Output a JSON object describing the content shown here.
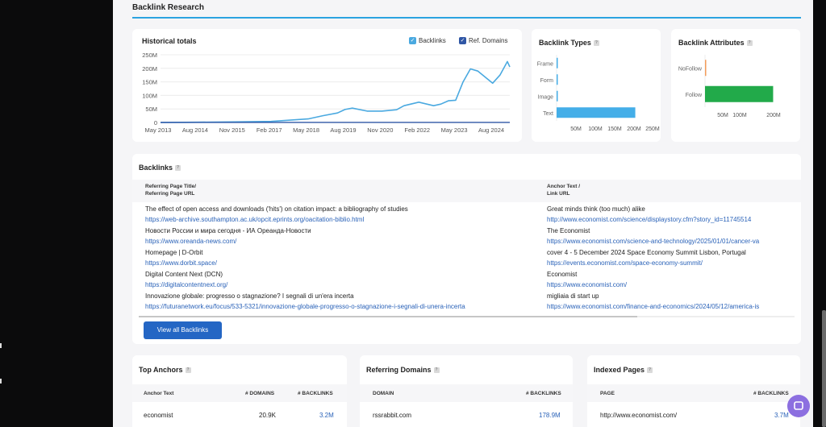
{
  "section": {
    "title": "Backlink Research"
  },
  "historical": {
    "title": "Historical totals",
    "legend": [
      {
        "label": "Backlinks",
        "color": "#4aa9e0"
      },
      {
        "label": "Ref. Domains",
        "color": "#2f56a5"
      }
    ]
  },
  "chart_data": [
    {
      "type": "line",
      "title": "Historical totals",
      "x_tick_labels": [
        "May 2013",
        "Aug 2014",
        "Nov 2015",
        "Feb 2017",
        "May 2018",
        "Aug 2019",
        "Nov 2020",
        "Feb 2022",
        "May 2023",
        "Aug 2024"
      ],
      "y_tick_labels": [
        "250M",
        "200M",
        "150M",
        "100M",
        "50M",
        "0"
      ],
      "ylim": [
        0,
        250000000
      ],
      "series": [
        {
          "name": "Backlinks",
          "color": "#4aa9e0",
          "x": [
            "2013-05",
            "2014-08",
            "2015-11",
            "2017-02",
            "2018-05",
            "2018-11",
            "2019-05",
            "2019-08",
            "2019-11",
            "2020-05",
            "2020-11",
            "2021-05",
            "2021-08",
            "2022-02",
            "2022-08",
            "2022-11",
            "2023-02",
            "2023-05",
            "2023-08",
            "2023-11",
            "2024-02",
            "2024-08",
            "2024-11",
            "2025-02",
            "2025-03"
          ],
          "values": [
            0,
            1000000,
            2000000,
            4000000,
            13000000,
            25000000,
            35000000,
            48000000,
            53000000,
            42000000,
            42000000,
            47000000,
            62000000,
            75000000,
            62000000,
            68000000,
            80000000,
            82000000,
            150000000,
            198000000,
            190000000,
            145000000,
            175000000,
            225000000,
            205000000
          ]
        },
        {
          "name": "Ref. Domains",
          "color": "#2f56a5",
          "x": [
            "2013-05",
            "2025-03"
          ],
          "values": [
            0,
            300000
          ]
        }
      ]
    },
    {
      "type": "bar",
      "title": "Backlink Types",
      "categories": [
        "Frame",
        "Form",
        "Image",
        "Text"
      ],
      "values": [
        0.8,
        0.8,
        0.8,
        205
      ],
      "x_tick_labels": [
        "50M",
        "100M",
        "150M",
        "200M",
        "250M"
      ],
      "color": "#44aee8"
    },
    {
      "type": "bar",
      "title": "Backlink Attributes",
      "categories": [
        "NoFollow",
        "Follow"
      ],
      "values": [
        2,
        205
      ],
      "colors": [
        "#f39c5a",
        "#22aa4a"
      ],
      "x_tick_labels": [
        "50M",
        "100M",
        "200M"
      ]
    }
  ],
  "backlink_types": {
    "title": "Backlink Types"
  },
  "backlink_attributes": {
    "title": "Backlink Attributes"
  },
  "backlinks": {
    "title": "Backlinks",
    "col1_header_line1": "Referring Page Title/",
    "col1_header_line2": "Referring Page URL",
    "col2_header_line1": "Anchor Text /",
    "col2_header_line2": "Link URL",
    "rows": [
      {
        "title": "The effect of open access and downloads ('hits') on citation impact: a bibliography of studies",
        "url": "https://web-archive.southampton.ac.uk/opcit.eprints.org/oacitation-biblio.html",
        "anchor": "Great minds think (too much) alike",
        "link": "http://www.economist.com/science/displaystory.cfm?story_id=11745514"
      },
      {
        "title": "Новости России и мира сегодня - ИА Ореанда-Новости",
        "url": "https://www.oreanda-news.com/",
        "anchor": "The Economist",
        "link": "https://www.economist.com/science-and-technology/2025/01/01/cancer-va"
      },
      {
        "title": "Homepage | D-Orbit",
        "url": "https://www.dorbit.space/",
        "anchor": "cover 4 - 5 December 2024 Space Economy Summit Lisbon, Portugal",
        "link": "https://events.economist.com/space-economy-summit/"
      },
      {
        "title": "Digital Content Next (DCN)",
        "url": "https://digitalcontentnext.org/",
        "anchor": "Economist",
        "link": "https://www.economist.com/"
      },
      {
        "title": "Innovazione globale: progresso o stagnazione? I segnali di un'era incerta",
        "url": "https://futuranetwork.eu/focus/533-5321/innovazione-globale-progresso-o-stagnazione-i-segnali-di-unera-incerta",
        "anchor": "migliaia di start up",
        "link": "https://www.economist.com/finance-and-economics/2024/05/12/america-is"
      }
    ],
    "view_all_label": "View all Backlinks"
  },
  "top_anchors": {
    "title": "Top Anchors",
    "headers": [
      "Anchor Text",
      "# DOMAINS",
      "# BACKLINKS"
    ],
    "rows": [
      {
        "text": "economist",
        "domains": "20.9K",
        "backlinks": "3.2M"
      }
    ]
  },
  "referring_domains": {
    "title": "Referring Domains",
    "headers": [
      "DOMAIN",
      "# BACKLINKS"
    ],
    "rows": [
      {
        "domain": "rssrabbit.com",
        "backlinks": "178.9M"
      }
    ]
  },
  "indexed_pages": {
    "title": "Indexed Pages",
    "headers": [
      "PAGE",
      "# BACKLINKS"
    ],
    "rows": [
      {
        "page": "http://www.economist.com/",
        "backlinks": "3.7M"
      }
    ]
  },
  "colors": {
    "accent": "#2ba3e0",
    "button": "#2466c4",
    "link": "#2a62b8"
  }
}
